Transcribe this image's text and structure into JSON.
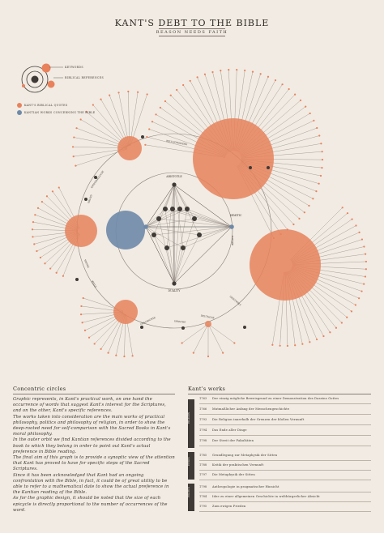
{
  "header": {
    "title": "KANT'S DEBT TO THE BIBLE",
    "subtitle": "REASON NEEDS FAITH"
  },
  "legend": {
    "keywords": "KEYWORDS",
    "biblical_references": "BIBLICAL REFERENCES",
    "quotes": "KANT'S BIBLICAL QUOTES",
    "works_concerning": "KANTIAN WORKS CONCERNING THE BIBLE"
  },
  "colors": {
    "accent": "#e8825c",
    "blue": "#6f8aa8",
    "dark": "#3f3a36",
    "background": "#f1ebe3"
  },
  "diagram": {
    "center_labels": [
      "ARISTOTLE",
      "SEMITIC",
      "DUALITY"
    ],
    "ring_labels": [
      "RELIGIONSWERK",
      "EPISTEMOLOGIE",
      "GRUND",
      "PRAXIS",
      "ETHIK",
      "GESCHICHTE",
      "SPRACHE",
      "DEUTSCHE",
      "GEISTWELT",
      "NATURE"
    ]
  },
  "concentric": {
    "title": "Concentric circles",
    "paragraphs": [
      "Graphic represents, in Kant's practical work, on one hand the occurrence of words that suggest Kant's interest for the Scriptures, and on the other, Kant's specific references.",
      "The works taken into consideration are the main works of practical philosophy, politics and philosophy of religion, in order to show the deep-rooted need for self-comparison with the Sacred Books in Kant's moral philosophy.",
      "In the outer orbit we find Kantian references divided according to the book to which they belong in order to point out Kant's actual preference in Bible reading.",
      "The final aim of this graph is to provide a synoptic view of the attention that Kant has proved to have for specific steps of the Sacred Scriptures.",
      "Since it has been acknowledged that Kant had an ongoing confrontation with the Bible, in fact, it could be of great utility to be able to refer to a mathematical date to show the actual preference in the Kantian reading of the Bible.",
      "As for the graphic design, it should be noted that the size of each epicycle is directly proportional to the number of occurrences of the word."
    ]
  },
  "works": {
    "title": "Kant's works",
    "items": [
      {
        "year": "1763",
        "name": "Der einzig mögliche Beweisgrund zu einer Demonstration des Daseins Gottes"
      },
      {
        "year": "1766",
        "name": "Mutmaßlicher Anfang der Menschengeschichte"
      },
      {
        "year": "1793",
        "name": "Die Religion innerhalb der Grenzen der bloßen Vernunft"
      },
      {
        "year": "1794",
        "name": "Das Ende aller Dinge"
      },
      {
        "year": "1798",
        "name": "Der Streit der Fakultäten"
      },
      {
        "year": "1785",
        "name": "Grundlegung zur Metaphysik der Sitten"
      },
      {
        "year": "1788",
        "name": "Kritik der praktischen Vernunft"
      },
      {
        "year": "1797",
        "name": "Die Metaphysik der Sitten"
      },
      {
        "year": "1798",
        "name": "Anthropologie in pragmatischer Hinsicht"
      },
      {
        "year": "1784",
        "name": "Idee zu einer allgemeinen Geschichte in weltbürgerlicher Absicht"
      },
      {
        "year": "1795",
        "name": "Zum ewigen Frieden"
      }
    ],
    "groups": [
      "RELIGION",
      "ETHICS",
      "POLITICS"
    ]
  }
}
